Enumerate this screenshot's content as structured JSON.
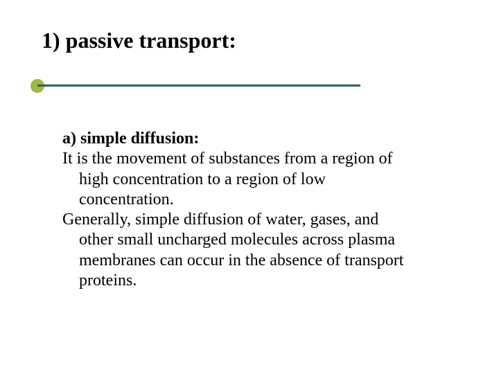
{
  "slide": {
    "title": "1) passive transport:",
    "accent_dot_color": "#9fb943",
    "accent_line_color": "#305d6a",
    "background_color": "#ffffff",
    "title_fontsize": 32,
    "body_fontsize": 24,
    "subheading": "a) simple diffusion:",
    "para1_line1": "It is the movement of substances from a region of",
    "para1_line2": "high concentration to a region of low",
    "para1_line3": "concentration.",
    "para2_line1": "Generally, simple diffusion of water, gases, and",
    "para2_line2": "other small uncharged molecules across plasma",
    "para2_line3": "membranes can occur in the absence of transport",
    "para2_line4": "proteins."
  }
}
